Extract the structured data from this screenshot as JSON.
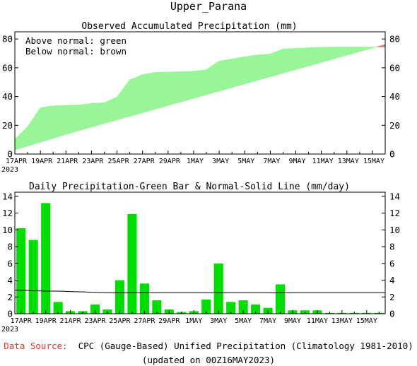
{
  "region_title": "Upper_Parana",
  "footer": {
    "source_label": "Data Source:",
    "source_text": "CPC (Gauge-Based) Unified Precipitation (Climatology 1981-2010)",
    "updated": "(updated on 00Z16MAY2023)"
  },
  "colors": {
    "green": "#98f598",
    "brown": "#d08a80",
    "bar": "#00dd00",
    "source": "#e8302a"
  },
  "chart_data": [
    {
      "type": "area",
      "title": "Observed Accumulated Precipitation (mm)",
      "legend": [
        "Above normal: green",
        "Below normal: brown"
      ],
      "legend_placement": "top-left",
      "x_ticks": [
        "17APR",
        "19APR",
        "21APR",
        "23APR",
        "25APR",
        "27APR",
        "29APR",
        "1MAY",
        "3MAY",
        "5MAY",
        "7MAY",
        "9MAY",
        "11MAY",
        "13MAY",
        "15MAY"
      ],
      "x_year_label": "2023",
      "y_ticks": [
        "0",
        "20",
        "40",
        "60",
        "80"
      ],
      "ylim": [
        0,
        85
      ],
      "grid": false,
      "dates": [
        "17APR",
        "18APR",
        "19APR",
        "20APR",
        "21APR",
        "22APR",
        "23APR",
        "24APR",
        "25APR",
        "26APR",
        "27APR",
        "28APR",
        "29APR",
        "30APR",
        "1MAY",
        "2MAY",
        "3MAY",
        "4MAY",
        "5MAY",
        "6MAY",
        "7MAY",
        "8MAY",
        "9MAY",
        "10MAY",
        "11MAY",
        "12MAY",
        "13MAY",
        "14MAY",
        "15MAY",
        "16MAY"
      ],
      "series": [
        {
          "name": "Observed",
          "values": [
            10.2,
            19.0,
            32.2,
            33.6,
            33.9,
            34.1,
            35.2,
            35.7,
            39.7,
            51.6,
            55.2,
            56.8,
            57.0,
            57.3,
            57.6,
            58.7,
            64.7,
            66.1,
            67.7,
            68.9,
            69.6,
            73.1,
            73.5,
            73.9,
            74.3,
            74.4,
            74.4,
            74.4,
            74.4,
            74.4
          ]
        },
        {
          "name": "Normal",
          "values": [
            2.8,
            5.5,
            8.2,
            10.9,
            13.6,
            16.2,
            18.7,
            21.2,
            23.7,
            26.2,
            28.7,
            31.2,
            33.7,
            36.2,
            38.7,
            41.2,
            43.7,
            46.2,
            48.7,
            51.2,
            53.7,
            56.2,
            58.7,
            61.2,
            63.7,
            66.2,
            68.7,
            71.2,
            73.7,
            76.2
          ]
        }
      ]
    },
    {
      "type": "bar",
      "title": "Daily Precipitation-Green Bar & Normal-Solid Line (mm/day)",
      "x_ticks": [
        "17APR",
        "19APR",
        "21APR",
        "23APR",
        "25APR",
        "27APR",
        "29APR",
        "1MAY",
        "3MAY",
        "5MAY",
        "7MAY",
        "9MAY",
        "11MAY",
        "13MAY",
        "15MAY"
      ],
      "x_year_label": "2023",
      "y_ticks": [
        "0",
        "2",
        "4",
        "6",
        "8",
        "10",
        "12",
        "14"
      ],
      "ylim": [
        0,
        14.5
      ],
      "grid": false,
      "categories": [
        "17APR",
        "18APR",
        "19APR",
        "20APR",
        "21APR",
        "22APR",
        "23APR",
        "24APR",
        "25APR",
        "26APR",
        "27APR",
        "28APR",
        "29APR",
        "30APR",
        "1MAY",
        "2MAY",
        "3MAY",
        "4MAY",
        "5MAY",
        "6MAY",
        "7MAY",
        "8MAY",
        "9MAY",
        "10MAY",
        "11MAY",
        "12MAY",
        "13MAY",
        "14MAY",
        "15MAY",
        "16MAY"
      ],
      "series": [
        {
          "name": "Daily",
          "values": [
            10.2,
            8.8,
            13.2,
            1.4,
            0.3,
            0.3,
            1.1,
            0.5,
            4.0,
            11.9,
            3.6,
            1.6,
            0.5,
            0.2,
            0.3,
            1.7,
            6.0,
            1.4,
            1.6,
            1.1,
            0.7,
            3.5,
            0.4,
            0.4,
            0.4,
            0.1,
            0.1,
            0.1,
            0.1,
            0.1
          ]
        },
        {
          "name": "Normal",
          "values": [
            2.8,
            2.75,
            2.7,
            2.7,
            2.65,
            2.6,
            2.55,
            2.5,
            2.5,
            2.5,
            2.5,
            2.5,
            2.5,
            2.5,
            2.5,
            2.5,
            2.5,
            2.5,
            2.5,
            2.5,
            2.5,
            2.5,
            2.5,
            2.5,
            2.5,
            2.5,
            2.5,
            2.5,
            2.5,
            2.5
          ]
        }
      ]
    }
  ]
}
